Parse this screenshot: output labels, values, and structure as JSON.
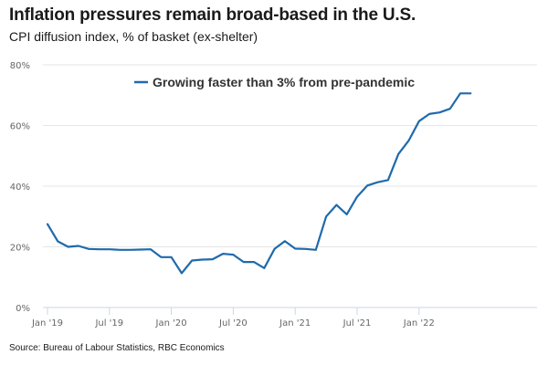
{
  "chart_data": {
    "type": "line",
    "title": "Inflation pressures remain broad-based in the U.S.",
    "subtitle": "CPI diffusion index, % of basket (ex-shelter)",
    "source": "Source: Bureau of Labour Statistics, RBC Economics",
    "xlabel": "",
    "ylabel": "",
    "ylim": [
      0,
      80
    ],
    "yticks": [
      0,
      20,
      40,
      60,
      80
    ],
    "ytick_labels": [
      "0%",
      "20%",
      "40%",
      "60%",
      "80%"
    ],
    "xtick_labels": [
      "Jan '19",
      "Jul '19",
      "Jan '20",
      "Jul '20",
      "Jan '21",
      "Jul '21",
      "Jan '22"
    ],
    "xtick_month_index": [
      0,
      6,
      12,
      18,
      24,
      30,
      36
    ],
    "x_start": "Jan 2019",
    "x_frequency": "monthly",
    "grid": true,
    "legend_position": "top-center",
    "series": [
      {
        "name": "Growing faster than 3% from pre-pandemic",
        "color": "#1f6aad",
        "values": [
          27.5,
          21.8,
          20.0,
          20.3,
          19.3,
          19.2,
          19.2,
          19.0,
          19.0,
          19.1,
          19.2,
          16.6,
          16.6,
          11.3,
          15.5,
          15.8,
          15.9,
          17.7,
          17.4,
          15.0,
          15.0,
          13.0,
          19.3,
          21.9,
          19.4,
          19.3,
          19.0,
          30.0,
          33.8,
          30.7,
          36.5,
          40.2,
          41.3,
          42.0,
          50.6,
          55.0,
          61.4,
          63.8,
          64.3,
          65.5,
          70.6,
          70.6
        ]
      }
    ]
  }
}
